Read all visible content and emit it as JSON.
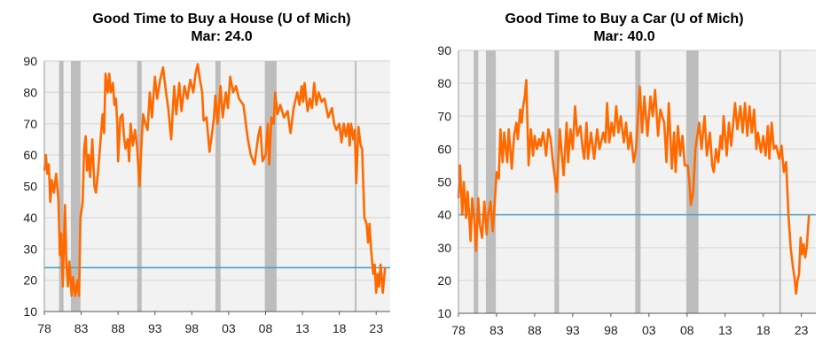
{
  "colors": {
    "line": "#ff6a00",
    "current": "#4aa3c8",
    "recession": "#bdbdbd",
    "plot_bg": "#f2f2f2",
    "grid": "#dedede"
  },
  "chart_data": [
    {
      "type": "line",
      "title": "Good Time to Buy a House (U of Mich)",
      "subtitle": "Mar: 24.0",
      "current_value": 24.0,
      "ylim": [
        10,
        90
      ],
      "yticks": [
        10,
        20,
        30,
        40,
        50,
        60,
        70,
        80,
        90
      ],
      "xlim": [
        1978,
        2024.9
      ],
      "xticks": [
        {
          "v": 1978,
          "l": "78"
        },
        {
          "v": 1983,
          "l": "83"
        },
        {
          "v": 1988,
          "l": "88"
        },
        {
          "v": 1993,
          "l": "93"
        },
        {
          "v": 1998,
          "l": "98"
        },
        {
          "v": 2003,
          "l": "03"
        },
        {
          "v": 2008,
          "l": "08"
        },
        {
          "v": 2013,
          "l": "13"
        },
        {
          "v": 2018,
          "l": "18"
        },
        {
          "v": 2023,
          "l": "23"
        }
      ],
      "recessions": [
        [
          1980.0,
          1980.6
        ],
        [
          1981.6,
          1982.9
        ],
        [
          1990.6,
          1991.2
        ],
        [
          2001.2,
          2001.9
        ],
        [
          2007.9,
          2009.5
        ],
        [
          2020.1,
          2020.3
        ]
      ],
      "series": [
        [
          1978,
          55
        ],
        [
          1978.2,
          60
        ],
        [
          1978.4,
          54
        ],
        [
          1978.6,
          57
        ],
        [
          1978.8,
          45
        ],
        [
          1979,
          52
        ],
        [
          1979.3,
          48
        ],
        [
          1979.6,
          54
        ],
        [
          1979.9,
          46
        ],
        [
          1980.1,
          28
        ],
        [
          1980.3,
          35
        ],
        [
          1980.5,
          18
        ],
        [
          1980.8,
          44
        ],
        [
          1981,
          25
        ],
        [
          1981.2,
          18
        ],
        [
          1981.4,
          26
        ],
        [
          1981.7,
          15
        ],
        [
          1981.9,
          21
        ],
        [
          1982.2,
          15
        ],
        [
          1982.5,
          20
        ],
        [
          1982.7,
          15
        ],
        [
          1982.9,
          40
        ],
        [
          1983.2,
          45
        ],
        [
          1983.4,
          62
        ],
        [
          1983.6,
          66
        ],
        [
          1983.8,
          55
        ],
        [
          1984,
          60
        ],
        [
          1984.2,
          53
        ],
        [
          1984.5,
          65
        ],
        [
          1984.8,
          50
        ],
        [
          1985,
          48
        ],
        [
          1985.3,
          55
        ],
        [
          1985.6,
          64
        ],
        [
          1985.9,
          73
        ],
        [
          1986.1,
          67
        ],
        [
          1986.3,
          86
        ],
        [
          1986.6,
          80
        ],
        [
          1986.8,
          86
        ],
        [
          1987,
          80
        ],
        [
          1987.3,
          83
        ],
        [
          1987.5,
          76
        ],
        [
          1987.7,
          78
        ],
        [
          1987.9,
          70
        ],
        [
          1988,
          58
        ],
        [
          1988.3,
          72
        ],
        [
          1988.6,
          73
        ],
        [
          1988.8,
          66
        ],
        [
          1989,
          62
        ],
        [
          1989.3,
          65
        ],
        [
          1989.5,
          58
        ],
        [
          1989.7,
          70
        ],
        [
          1990,
          63
        ],
        [
          1990.3,
          68
        ],
        [
          1990.6,
          62
        ],
        [
          1990.9,
          50
        ],
        [
          1991.2,
          65
        ],
        [
          1991.4,
          73
        ],
        [
          1991.7,
          70
        ],
        [
          1992,
          68
        ],
        [
          1992.3,
          80
        ],
        [
          1992.6,
          72
        ],
        [
          1993,
          85
        ],
        [
          1993.3,
          78
        ],
        [
          1993.7,
          84
        ],
        [
          1994.1,
          88
        ],
        [
          1994.5,
          80
        ],
        [
          1994.8,
          75
        ],
        [
          1995.2,
          65
        ],
        [
          1995.6,
          82
        ],
        [
          1995.9,
          73
        ],
        [
          1996.3,
          83
        ],
        [
          1996.6,
          74
        ],
        [
          1997,
          82
        ],
        [
          1997.4,
          78
        ],
        [
          1997.8,
          84
        ],
        [
          1998.2,
          80
        ],
        [
          1998.5,
          86
        ],
        [
          1998.8,
          89
        ],
        [
          1999.1,
          84
        ],
        [
          1999.4,
          80
        ],
        [
          1999.6,
          71
        ],
        [
          2000,
          72
        ],
        [
          2000.4,
          61
        ],
        [
          2000.8,
          68
        ],
        [
          2001,
          72
        ],
        [
          2001.2,
          79
        ],
        [
          2001.5,
          70
        ],
        [
          2001.9,
          82
        ],
        [
          2002.2,
          72
        ],
        [
          2002.6,
          80
        ],
        [
          2002.9,
          75
        ],
        [
          2003.2,
          85
        ],
        [
          2003.6,
          80
        ],
        [
          2004,
          82
        ],
        [
          2004.4,
          78
        ],
        [
          2005,
          76
        ],
        [
          2005.6,
          65
        ],
        [
          2006,
          60
        ],
        [
          2006.5,
          57
        ],
        [
          2007,
          66
        ],
        [
          2007.3,
          69
        ],
        [
          2007.6,
          58
        ],
        [
          2008,
          60
        ],
        [
          2008.3,
          70
        ],
        [
          2008.5,
          57
        ],
        [
          2008.8,
          72
        ],
        [
          2009.1,
          70
        ],
        [
          2009.3,
          80
        ],
        [
          2009.6,
          73
        ],
        [
          2010,
          76
        ],
        [
          2010.5,
          72
        ],
        [
          2011,
          74
        ],
        [
          2011.2,
          70
        ],
        [
          2011.4,
          67
        ],
        [
          2011.8,
          75
        ],
        [
          2012.3,
          80
        ],
        [
          2012.6,
          76
        ],
        [
          2012.9,
          82
        ],
        [
          2013.1,
          77
        ],
        [
          2013.3,
          83
        ],
        [
          2013.7,
          74
        ],
        [
          2014,
          78
        ],
        [
          2014.3,
          75
        ],
        [
          2014.6,
          83
        ],
        [
          2014.9,
          76
        ],
        [
          2015.2,
          80
        ],
        [
          2015.6,
          77
        ],
        [
          2016,
          78
        ],
        [
          2016.5,
          72
        ],
        [
          2017,
          75
        ],
        [
          2017.3,
          70
        ],
        [
          2017.6,
          68
        ],
        [
          2018,
          70
        ],
        [
          2018.3,
          64
        ],
        [
          2018.6,
          70
        ],
        [
          2018.9,
          66
        ],
        [
          2019.2,
          70
        ],
        [
          2019.4,
          63
        ],
        [
          2019.6,
          70
        ],
        [
          2019.9,
          65
        ],
        [
          2020.1,
          68
        ],
        [
          2020.3,
          51
        ],
        [
          2020.6,
          69
        ],
        [
          2020.9,
          63
        ],
        [
          2021.1,
          62
        ],
        [
          2021.4,
          40
        ],
        [
          2021.7,
          38
        ],
        [
          2021.9,
          32
        ],
        [
          2022.1,
          38
        ],
        [
          2022.3,
          30
        ],
        [
          2022.6,
          22
        ],
        [
          2022.8,
          25
        ],
        [
          2023,
          16
        ],
        [
          2023.2,
          22
        ],
        [
          2023.4,
          18
        ],
        [
          2023.6,
          25
        ],
        [
          2023.9,
          16
        ],
        [
          2024.2,
          24
        ]
      ]
    },
    {
      "type": "line",
      "title": "Good Time to Buy a Car (U of Mich)",
      "subtitle": "Mar: 40.0",
      "current_value": 40.0,
      "ylim": [
        10,
        90
      ],
      "yticks": [
        10,
        20,
        30,
        40,
        50,
        60,
        70,
        80,
        90
      ],
      "xlim": [
        1978,
        2024.9
      ],
      "xticks": [
        {
          "v": 1978,
          "l": "78"
        },
        {
          "v": 1983,
          "l": "83"
        },
        {
          "v": 1988,
          "l": "88"
        },
        {
          "v": 1993,
          "l": "93"
        },
        {
          "v": 1998,
          "l": "98"
        },
        {
          "v": 2003,
          "l": "03"
        },
        {
          "v": 2008,
          "l": "08"
        },
        {
          "v": 2013,
          "l": "13"
        },
        {
          "v": 2018,
          "l": "18"
        },
        {
          "v": 2023,
          "l": "23"
        }
      ],
      "recessions": [
        [
          1980.0,
          1980.6
        ],
        [
          1981.6,
          1982.9
        ],
        [
          1990.6,
          1991.2
        ],
        [
          2001.2,
          2001.9
        ],
        [
          2007.9,
          2009.5
        ],
        [
          2020.1,
          2020.3
        ]
      ],
      "series": [
        [
          1978,
          45
        ],
        [
          1978.2,
          55
        ],
        [
          1978.5,
          40
        ],
        [
          1978.7,
          50
        ],
        [
          1979,
          39
        ],
        [
          1979.2,
          47
        ],
        [
          1979.4,
          40
        ],
        [
          1979.6,
          32
        ],
        [
          1979.8,
          45
        ],
        [
          1980.1,
          38
        ],
        [
          1980.3,
          29
        ],
        [
          1980.6,
          45
        ],
        [
          1980.8,
          37
        ],
        [
          1981.1,
          33
        ],
        [
          1981.4,
          44
        ],
        [
          1981.7,
          34
        ],
        [
          1981.9,
          40
        ],
        [
          1982.2,
          44
        ],
        [
          1982.5,
          35
        ],
        [
          1982.8,
          45
        ],
        [
          1983,
          53
        ],
        [
          1983.3,
          51
        ],
        [
          1983.5,
          66
        ],
        [
          1983.8,
          56
        ],
        [
          1984,
          65
        ],
        [
          1984.4,
          56
        ],
        [
          1984.6,
          66
        ],
        [
          1985,
          54
        ],
        [
          1985.3,
          64
        ],
        [
          1985.6,
          68
        ],
        [
          1985.8,
          63
        ],
        [
          1986.1,
          72
        ],
        [
          1986.3,
          68
        ],
        [
          1986.5,
          73
        ],
        [
          1986.7,
          76
        ],
        [
          1986.9,
          81
        ],
        [
          1987.2,
          55
        ],
        [
          1987.5,
          66
        ],
        [
          1987.8,
          58
        ],
        [
          1988,
          64
        ],
        [
          1988.3,
          60
        ],
        [
          1988.6,
          63
        ],
        [
          1988.8,
          61
        ],
        [
          1989.1,
          65
        ],
        [
          1989.3,
          62
        ],
        [
          1989.5,
          58
        ],
        [
          1989.8,
          66
        ],
        [
          1990.1,
          63
        ],
        [
          1990.4,
          56
        ],
        [
          1990.9,
          47
        ],
        [
          1991.3,
          66
        ],
        [
          1991.5,
          60
        ],
        [
          1991.8,
          52
        ],
        [
          1992.2,
          68
        ],
        [
          1992.4,
          56
        ],
        [
          1992.7,
          66
        ],
        [
          1993,
          60
        ],
        [
          1993.3,
          73
        ],
        [
          1993.6,
          64
        ],
        [
          1994,
          67
        ],
        [
          1994.3,
          60
        ],
        [
          1994.5,
          57
        ],
        [
          1994.8,
          68
        ],
        [
          1995,
          57
        ],
        [
          1995.4,
          65
        ],
        [
          1995.8,
          57
        ],
        [
          1996.2,
          66
        ],
        [
          1996.5,
          60
        ],
        [
          1997,
          65
        ],
        [
          1997.3,
          62
        ],
        [
          1997.5,
          74
        ],
        [
          1997.8,
          62
        ],
        [
          1998.1,
          68
        ],
        [
          1998.4,
          64
        ],
        [
          1998.7,
          73
        ],
        [
          1999,
          65
        ],
        [
          1999.3,
          70
        ],
        [
          1999.7,
          62
        ],
        [
          2000,
          68
        ],
        [
          2000.3,
          60
        ],
        [
          2000.6,
          65
        ],
        [
          2001,
          56
        ],
        [
          2001.3,
          60
        ],
        [
          2001.8,
          79
        ],
        [
          2002.1,
          65
        ],
        [
          2002.4,
          76
        ],
        [
          2002.8,
          64
        ],
        [
          2003.2,
          76
        ],
        [
          2003.5,
          70
        ],
        [
          2003.8,
          78
        ],
        [
          2004.2,
          64
        ],
        [
          2004.5,
          72
        ],
        [
          2005,
          68
        ],
        [
          2005.3,
          56
        ],
        [
          2005.6,
          74
        ],
        [
          2006,
          54
        ],
        [
          2006.3,
          65
        ],
        [
          2006.5,
          53
        ],
        [
          2006.8,
          67
        ],
        [
          2007.1,
          58
        ],
        [
          2007.4,
          64
        ],
        [
          2007.7,
          55
        ],
        [
          2008.1,
          55
        ],
        [
          2008.3,
          50
        ],
        [
          2008.5,
          43
        ],
        [
          2008.8,
          47
        ],
        [
          2009.1,
          60
        ],
        [
          2009.6,
          68
        ],
        [
          2009.9,
          60
        ],
        [
          2010.3,
          70
        ],
        [
          2010.6,
          58
        ],
        [
          2011,
          65
        ],
        [
          2011.3,
          55
        ],
        [
          2011.5,
          53
        ],
        [
          2011.8,
          60
        ],
        [
          2012.1,
          56
        ],
        [
          2012.4,
          64
        ],
        [
          2012.6,
          60
        ],
        [
          2012.8,
          70
        ],
        [
          2013.2,
          58
        ],
        [
          2013.5,
          68
        ],
        [
          2013.8,
          61
        ],
        [
          2014.3,
          74
        ],
        [
          2014.6,
          66
        ],
        [
          2015,
          73
        ],
        [
          2015.3,
          65
        ],
        [
          2015.6,
          74
        ],
        [
          2015.9,
          64
        ],
        [
          2016.2,
          73
        ],
        [
          2016.5,
          65
        ],
        [
          2016.8,
          72
        ],
        [
          2017.1,
          60
        ],
        [
          2017.3,
          65
        ],
        [
          2017.7,
          59
        ],
        [
          2018,
          64
        ],
        [
          2018.3,
          58
        ],
        [
          2018.6,
          67
        ],
        [
          2018.8,
          57
        ],
        [
          2019.1,
          68
        ],
        [
          2019.4,
          60
        ],
        [
          2019.7,
          61
        ],
        [
          2020.1,
          57
        ],
        [
          2020.4,
          61
        ],
        [
          2020.7,
          53
        ],
        [
          2021,
          56
        ],
        [
          2021.3,
          40
        ],
        [
          2021.6,
          30
        ],
        [
          2021.9,
          24
        ],
        [
          2022.1,
          21
        ],
        [
          2022.3,
          16
        ],
        [
          2022.5,
          20
        ],
        [
          2022.7,
          22
        ],
        [
          2022.9,
          33
        ],
        [
          2023.1,
          28
        ],
        [
          2023.3,
          31
        ],
        [
          2023.5,
          27
        ],
        [
          2023.7,
          30
        ],
        [
          2024,
          40
        ]
      ]
    }
  ]
}
